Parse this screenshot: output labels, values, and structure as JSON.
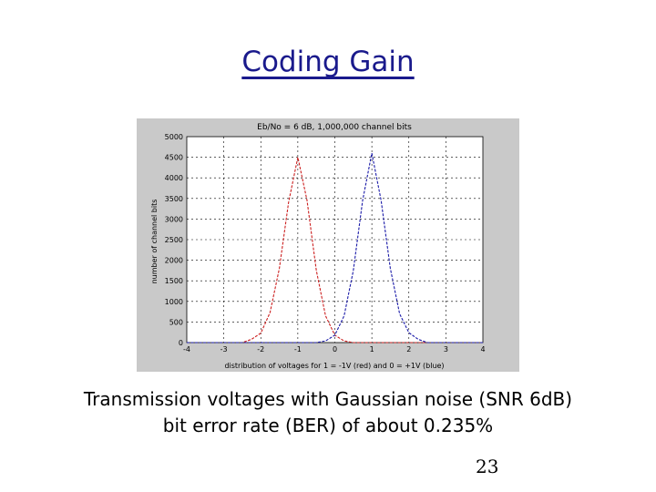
{
  "slide": {
    "title": "Coding Gain",
    "caption_line1": "Transmission voltages with Gaussian noise (SNR 6dB)",
    "caption_line2": "bit error rate (BER) of about 0.235%",
    "page_number": "23"
  },
  "chart_data": {
    "type": "line",
    "title": "Eb/No = 6 dB, 1,000,000 channel bits",
    "xlabel": "distribution of voltages for 1 = -1V (red) and 0 = +1V (blue)",
    "ylabel": "number of channel bits",
    "xlim": [
      -4,
      4
    ],
    "ylim": [
      0,
      5000
    ],
    "x_ticks": [
      "-4",
      "-3",
      "-2",
      "-1",
      "0",
      "1",
      "2",
      "3",
      "4"
    ],
    "y_ticks": [
      "0",
      "500",
      "1000",
      "1500",
      "2000",
      "2500",
      "3000",
      "3500",
      "4000",
      "4500",
      "5000"
    ],
    "grid": true,
    "series": [
      {
        "color": "#cc2020",
        "x": [
          -4.0,
          -2.5,
          -2.25,
          -2.0,
          -1.75,
          -1.5,
          -1.25,
          -1.0,
          -0.75,
          -0.5,
          -0.25,
          0.0,
          0.25,
          0.5,
          4.0
        ],
        "y": [
          0,
          0,
          80,
          230,
          730,
          1800,
          3400,
          4500,
          3450,
          1750,
          650,
          180,
          40,
          0,
          0
        ]
      },
      {
        "color": "#1a1aa8",
        "x": [
          -4.0,
          -0.5,
          -0.25,
          0.0,
          0.25,
          0.5,
          0.75,
          1.0,
          1.25,
          1.5,
          1.75,
          2.0,
          2.25,
          2.5,
          4.0
        ],
        "y": [
          0,
          0,
          40,
          180,
          650,
          1750,
          3450,
          4600,
          3450,
          1800,
          700,
          240,
          80,
          0,
          0
        ]
      }
    ]
  }
}
